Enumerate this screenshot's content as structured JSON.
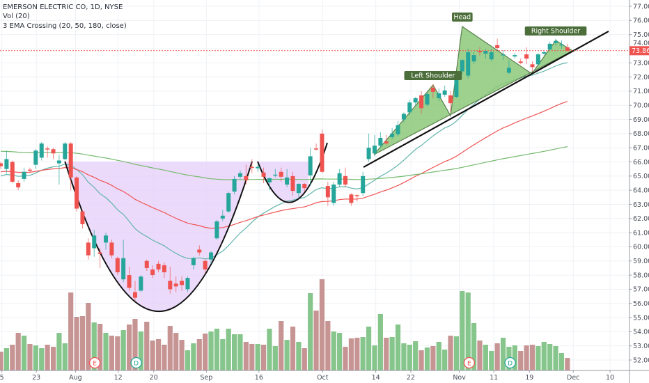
{
  "legend": {
    "symbol": "EMERSON ELECTRIC CO, 1D, NYSE",
    "volume": "Vol (20)",
    "ema": "3 EMA Crossing (20, 50, 180, close)"
  },
  "colors": {
    "up": "#26a69a",
    "down": "#ef5350",
    "volume_up": "#7fc285",
    "volume_down": "#c48e8e",
    "ema20": "#62b5ab",
    "ema50": "#f05454",
    "ema180": "#76ba6e",
    "cup_fill": "#e6cdfa",
    "hs_fill": "#8cc97a",
    "hs_stroke": "#3f6a2e",
    "label_bg": "#4b6e3a",
    "grid": "#eef1f5",
    "price_tag": "#ef5350"
  },
  "chart_data": {
    "type": "candlestick",
    "title": "EMERSON ELECTRIC CO, 1D, NYSE",
    "ylim": [
      51.5,
      77.4
    ],
    "y_ticks": [
      "77.00",
      "76.00",
      "75.00",
      "74.00",
      "73.00",
      "72.00",
      "71.00",
      "70.00",
      "69.00",
      "68.00",
      "67.00",
      "66.00",
      "65.00",
      "64.00",
      "63.00",
      "62.00",
      "61.00",
      "60.00",
      "59.00",
      "58.00",
      "57.00",
      "56.00",
      "55.00",
      "54.00",
      "53.00",
      "52.00"
    ],
    "x_ticks": [
      {
        "label": "5",
        "bar": 0.2
      },
      {
        "label": "23",
        "bar": 6.1
      },
      {
        "label": "Aug",
        "bar": 12.8
      },
      {
        "label": "12",
        "bar": 20.1
      },
      {
        "label": "20",
        "bar": 26.2
      },
      {
        "label": "Sep",
        "bar": 35.2
      },
      {
        "label": "16",
        "bar": 44.2
      },
      {
        "label": "Oct",
        "bar": 55.1
      },
      {
        "label": "14",
        "bar": 64.2
      },
      {
        "label": "22",
        "bar": 70.2
      },
      {
        "label": "Nov",
        "bar": 78.5
      },
      {
        "label": "11",
        "bar": 84.4
      },
      {
        "label": "19",
        "bar": 90.5
      },
      {
        "label": "Dec",
        "bar": 98.0
      },
      {
        "label": "10",
        "bar": 104.3
      }
    ],
    "last_price": "73.86",
    "candles_ohlc": [
      [
        65.9,
        66.0,
        65.5,
        65.7
      ],
      [
        65.5,
        66.8,
        65.2,
        66.2
      ],
      [
        66.0,
        66.1,
        64.5,
        64.6
      ],
      [
        64.5,
        64.7,
        64.0,
        64.2
      ],
      [
        64.8,
        65.6,
        64.6,
        65.3
      ],
      [
        65.45,
        65.6,
        65.3,
        65.4
      ],
      [
        65.8,
        66.9,
        65.5,
        66.8
      ],
      [
        66.3,
        67.4,
        66.1,
        67.3
      ],
      [
        66.95,
        67.1,
        66.3,
        66.9
      ],
      [
        66.9,
        67.0,
        66.2,
        66.6
      ],
      [
        65.9,
        66.5,
        64.4,
        66.1
      ],
      [
        66.2,
        67.4,
        66.1,
        67.3
      ],
      [
        67.3,
        67.4,
        64.0,
        64.9
      ],
      [
        64.9,
        65.0,
        62.5,
        62.7
      ],
      [
        62.5,
        62.6,
        61.3,
        61.6
      ],
      [
        60.3,
        60.6,
        59.1,
        59.4
      ],
      [
        59.9,
        61.2,
        59.3,
        60.8
      ],
      [
        59.6,
        59.9,
        58.5,
        59.5
      ],
      [
        60.3,
        61.0,
        59.8,
        60.8
      ],
      [
        60.3,
        60.5,
        59.2,
        59.4
      ],
      [
        59.2,
        59.3,
        58.0,
        58.2
      ],
      [
        57.7,
        60.5,
        57.5,
        59.2
      ],
      [
        58.0,
        58.6,
        56.9,
        57.1
      ],
      [
        56.8,
        57.6,
        56.2,
        56.4
      ],
      [
        56.9,
        58.0,
        56.8,
        57.9
      ],
      [
        59.0,
        59.1,
        58.3,
        58.5
      ],
      [
        58.4,
        58.7,
        57.8,
        58.0
      ],
      [
        58.8,
        59.0,
        58.2,
        58.4
      ],
      [
        58.7,
        58.9,
        57.8,
        58.2
      ],
      [
        57.6,
        58.6,
        56.7,
        57.0
      ],
      [
        57.4,
        57.9,
        56.8,
        57.2
      ],
      [
        57.6,
        57.9,
        56.9,
        57.3
      ],
      [
        57.0,
        57.9,
        56.8,
        57.8
      ],
      [
        58.7,
        59.3,
        58.4,
        59.2
      ],
      [
        59.8,
        60.1,
        59.4,
        59.6
      ],
      [
        59.0,
        59.1,
        58.1,
        58.4
      ],
      [
        59.1,
        59.7,
        58.8,
        59.6
      ],
      [
        60.6,
        61.9,
        60.5,
        61.8
      ],
      [
        62.0,
        62.6,
        61.8,
        62.2
      ],
      [
        62.5,
        63.9,
        62.4,
        63.8
      ],
      [
        63.9,
        65.0,
        63.7,
        64.8
      ],
      [
        64.95,
        65.4,
        64.8,
        65.2
      ],
      [
        65.0,
        65.8,
        64.4,
        64.7
      ],
      [
        65.65,
        66.2,
        65.2,
        65.6
      ],
      [
        65.55,
        65.8,
        65.3,
        65.65
      ],
      [
        65.25,
        65.6,
        64.5,
        64.95
      ],
      [
        64.55,
        64.9,
        64.0,
        64.85
      ],
      [
        65.05,
        65.5,
        64.9,
        65.1
      ],
      [
        65.3,
        65.6,
        64.6,
        64.95
      ],
      [
        64.4,
        65.5,
        64.2,
        64.9
      ],
      [
        65.0,
        65.3,
        63.6,
        63.95
      ],
      [
        63.8,
        64.5,
        63.5,
        64.45
      ],
      [
        64.45,
        64.5,
        63.9,
        64.15
      ],
      [
        65.05,
        67.0,
        64.3,
        66.4
      ],
      [
        66.95,
        67.3,
        66.8,
        66.9
      ],
      [
        68.0,
        68.3,
        65.2,
        65.3
      ],
      [
        64.3,
        64.6,
        62.9,
        63.5
      ],
      [
        63.1,
        64.6,
        62.9,
        64.4
      ],
      [
        64.4,
        65.5,
        64.2,
        65.2
      ],
      [
        65.0,
        65.6,
        64.2,
        64.4
      ],
      [
        63.7,
        63.8,
        62.9,
        63.1
      ],
      [
        63.65,
        63.7,
        63.2,
        63.6
      ],
      [
        63.8,
        65.3,
        63.6,
        65.0
      ],
      [
        66.2,
        68.0,
        66.0,
        67.0
      ],
      [
        66.6,
        67.9,
        66.4,
        67.15
      ],
      [
        67.15,
        68.1,
        67.0,
        67.7
      ],
      [
        67.45,
        67.9,
        67.2,
        67.3
      ],
      [
        67.75,
        68.4,
        67.6,
        68.0
      ],
      [
        67.95,
        68.9,
        67.8,
        68.6
      ],
      [
        69.0,
        69.5,
        68.8,
        69.4
      ],
      [
        69.5,
        70.4,
        69.3,
        70.2
      ],
      [
        70.2,
        70.6,
        70.0,
        70.5
      ],
      [
        70.7,
        71.0,
        69.4,
        69.8
      ],
      [
        70.05,
        70.9,
        69.9,
        70.8
      ],
      [
        71.25,
        71.5,
        70.5,
        70.95
      ],
      [
        70.5,
        71.2,
        70.3,
        70.85
      ],
      [
        70.75,
        71.4,
        70.6,
        71.05
      ],
      [
        70.7,
        71.0,
        69.5,
        70.15
      ],
      [
        70.6,
        72.0,
        70.5,
        71.8
      ],
      [
        72.4,
        73.3,
        72.2,
        73.2
      ],
      [
        72.1,
        74.0,
        71.9,
        73.75
      ],
      [
        73.1,
        73.8,
        72.9,
        73.55
      ],
      [
        73.85,
        74.1,
        73.5,
        73.75
      ],
      [
        73.65,
        74.0,
        73.3,
        73.85
      ],
      [
        73.25,
        74.0,
        73.1,
        73.75
      ],
      [
        74.25,
        74.7,
        73.9,
        74.05
      ],
      [
        73.55,
        73.9,
        73.2,
        73.6
      ],
      [
        72.3,
        73.2,
        72.2,
        72.65
      ],
      [
        73.45,
        73.7,
        73.3,
        73.55
      ],
      [
        73.1,
        73.3,
        72.9,
        73.0
      ],
      [
        73.6,
        74.1,
        72.9,
        73.3
      ],
      [
        72.9,
        73.1,
        72.4,
        72.7
      ],
      [
        72.9,
        73.7,
        72.8,
        73.6
      ],
      [
        73.65,
        73.9,
        73.5,
        73.75
      ],
      [
        73.95,
        74.5,
        73.9,
        74.35
      ],
      [
        74.4,
        74.7,
        74.2,
        74.55
      ],
      [
        74.25,
        74.6,
        74.0,
        74.3
      ],
      [
        74.1,
        74.35,
        73.8,
        73.86
      ]
    ],
    "volume_relative": [
      27,
      32,
      37,
      54,
      50,
      38,
      36,
      32,
      37,
      34,
      54,
      39,
      112,
      77,
      78,
      97,
      69,
      67,
      54,
      50,
      49,
      58,
      66,
      74,
      56,
      70,
      43,
      45,
      37,
      64,
      54,
      44,
      29,
      39,
      45,
      53,
      56,
      60,
      45,
      60,
      52,
      52,
      41,
      38,
      38,
      37,
      60,
      35,
      71,
      44,
      63,
      41,
      32,
      111,
      86,
      131,
      71,
      56,
      54,
      34,
      46,
      47,
      48,
      63,
      36,
      81,
      47,
      48,
      66,
      39,
      37,
      42,
      29,
      33,
      35,
      41,
      30,
      50,
      49,
      114,
      112,
      68,
      43,
      37,
      28,
      39,
      47,
      34,
      36,
      28,
      36,
      37,
      35,
      41,
      38,
      35,
      25,
      18
    ],
    "ema_series": [
      {
        "name": "EMA 20",
        "period": 20,
        "value_at_first_bar": 65.0,
        "color_key": "ema20"
      },
      {
        "name": "EMA 50",
        "period": 50,
        "value_at_first_bar": 65.3,
        "color_key": "ema50"
      },
      {
        "name": "EMA 180",
        "period": 180,
        "value_at_first_bar": 66.75,
        "color_key": "ema180"
      }
    ],
    "events": [
      {
        "label": "E",
        "bar": 16.1,
        "kind": "earnings"
      },
      {
        "label": "D",
        "bar": 23.2,
        "kind": "dividend"
      },
      {
        "label": "E",
        "bar": 80.2,
        "kind": "earnings"
      },
      {
        "label": "D",
        "bar": 87.2,
        "kind": "dividend"
      }
    ],
    "drawings": {
      "cup": {
        "start": [
          11.0,
          66.03
        ],
        "bottom": [
          27.06,
          55.44
        ],
        "end": [
          43.03,
          66.03
        ],
        "rim_price": 66.03,
        "fill_end_bar": 52.7
      },
      "handle": {
        "start": [
          43.98,
          66.03
        ],
        "bottom": [
          49.94,
          63.17
        ],
        "end": [
          55.9,
          67.35
        ]
      },
      "neckline": {
        "from": [
          62.1,
          65.63
        ],
        "to": [
          104.05,
          75.23
        ]
      },
      "head_and_shoulders": [
        [
          63.9,
          66.52
        ],
        [
          74.0,
          71.44
        ],
        [
          77.0,
          69.27
        ],
        [
          79.0,
          75.57
        ],
        [
          90.9,
          72.23
        ],
        [
          95.0,
          74.59
        ],
        [
          97.85,
          73.85
        ]
      ],
      "labels": [
        {
          "text": "Left Shoulder",
          "bar": 74.0,
          "price": 71.44
        },
        {
          "text": "Head",
          "bar": 79.0,
          "price": 75.57
        },
        {
          "text": "Right Shoulder",
          "bar": 95.0,
          "price": 74.59
        }
      ]
    }
  }
}
